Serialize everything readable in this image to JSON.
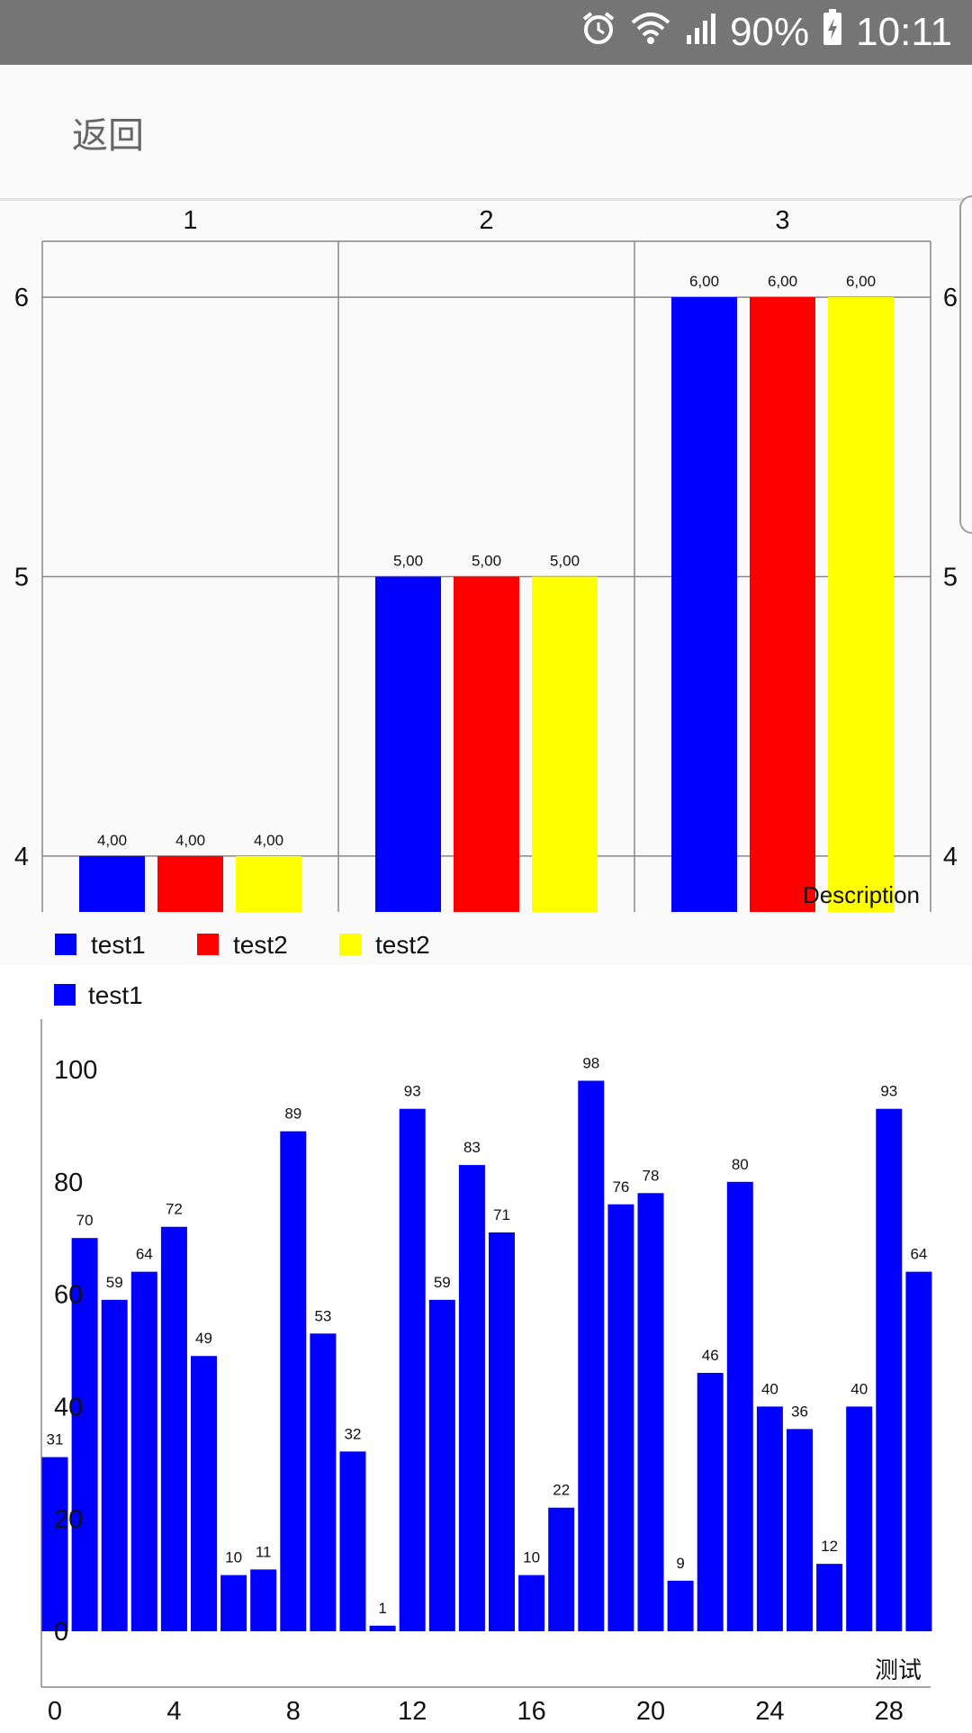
{
  "status_bar": {
    "battery": "90%",
    "time": "10:11",
    "icons": [
      "alarm-icon",
      "wifi-icon",
      "signal-icon",
      "battery-charging-icon"
    ]
  },
  "appbar": {
    "back_label": "返回"
  },
  "chart_data": [
    {
      "type": "bar",
      "categories": [
        "1",
        "2",
        "3"
      ],
      "series": [
        {
          "name": "test1",
          "values": [
            4,
            5,
            6
          ],
          "color": "#0000ff"
        },
        {
          "name": "test2",
          "values": [
            4,
            5,
            6
          ],
          "color": "#ff0000"
        },
        {
          "name": "test2",
          "values": [
            4,
            5,
            6
          ],
          "color": "#ffff00"
        }
      ],
      "value_labels": [
        "4,00",
        "5,00",
        "6,00"
      ],
      "ylim": [
        3.8,
        6.2
      ],
      "y_ticks": [
        "4",
        "5",
        "6"
      ],
      "description": "Description",
      "legend_position": "bottom-left",
      "grid": true
    },
    {
      "type": "bar",
      "x": [
        0,
        1,
        2,
        3,
        4,
        5,
        6,
        7,
        8,
        9,
        10,
        11,
        12,
        13,
        14,
        15,
        16,
        17,
        18,
        19,
        20,
        21,
        22,
        23,
        24,
        25,
        26,
        27,
        28,
        29
      ],
      "series": [
        {
          "name": "test1",
          "color": "#0000ff",
          "values": [
            31,
            70,
            59,
            64,
            72,
            49,
            10,
            11,
            89,
            53,
            32,
            1,
            93,
            59,
            83,
            71,
            10,
            22,
            98,
            76,
            78,
            9,
            46,
            80,
            40,
            36,
            12,
            40,
            93,
            64
          ]
        }
      ],
      "x_ticks": [
        "0",
        "4",
        "8",
        "12",
        "16",
        "20",
        "24",
        "28"
      ],
      "y_ticks": [
        "0",
        "20",
        "40",
        "60",
        "80",
        "100"
      ],
      "ylim": [
        0,
        100
      ],
      "description": "测试",
      "legend_position": "top-left",
      "grid": false
    }
  ]
}
